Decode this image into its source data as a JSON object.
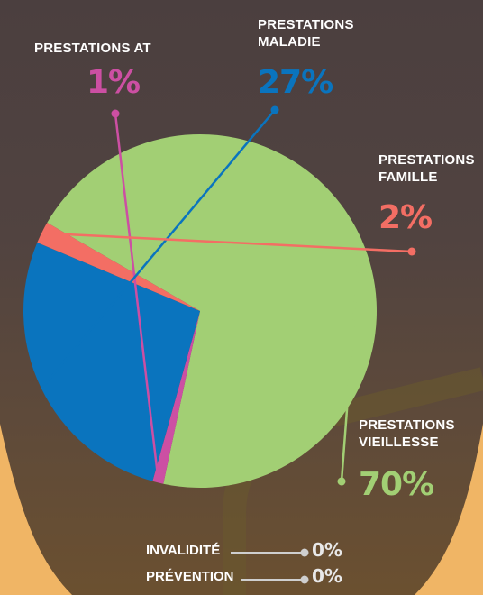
{
  "chart_data": {
    "type": "pie",
    "slices": [
      {
        "key": "vieillesse",
        "label_line1": "PRESTATIONS",
        "label_line2": "VIEILLESSE",
        "value": 70,
        "display": "70%",
        "color": "#a2cf74"
      },
      {
        "key": "at",
        "label_line1": "PRESTATIONS AT",
        "label_line2": "",
        "value": 1,
        "display": "1%",
        "color": "#cc4fa3"
      },
      {
        "key": "maladie",
        "label_line1": "PRESTATIONS",
        "label_line2": "MALADIE",
        "value": 27,
        "display": "27%",
        "color": "#0a74be"
      },
      {
        "key": "famille",
        "label_line1": "PRESTATIONS",
        "label_line2": "FAMILLE",
        "value": 2,
        "display": "2%",
        "color": "#f36e64"
      }
    ],
    "zero_items": [
      {
        "key": "invalidite",
        "label": "INVALIDITÉ",
        "display": "0%"
      },
      {
        "key": "prevention",
        "label": "PRÉVENTION",
        "display": "0%"
      }
    ]
  },
  "colors": {
    "background": "#4f423f",
    "accent_orange": "#e8a04a",
    "leader_grey": "#cfcfcf"
  }
}
